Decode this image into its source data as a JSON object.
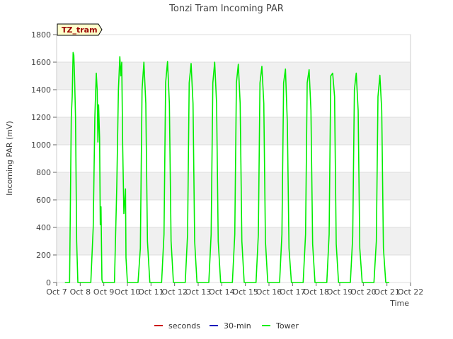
{
  "chart_data": {
    "type": "line",
    "title": "Tonzi Tram Incoming PAR",
    "xlabel": "Time",
    "ylabel": "Incoming PAR (mV)",
    "ylim": [
      0,
      1800
    ],
    "yticks": [
      0,
      200,
      400,
      600,
      800,
      1000,
      1200,
      1400,
      1600,
      1800
    ],
    "xlim": [
      7,
      22
    ],
    "xticks": [
      7,
      8,
      9,
      10,
      11,
      12,
      13,
      14,
      15,
      16,
      17,
      18,
      19,
      20,
      21,
      22
    ],
    "xtick_labels": [
      "Oct 7",
      "Oct 8",
      "Oct 9",
      "Oct 10",
      "Oct 11",
      "Oct 12",
      "Oct 13",
      "Oct 14",
      "Oct 15",
      "Oct 16",
      "Oct 17",
      "Oct 18",
      "Oct 19",
      "Oct 20",
      "Oct 21",
      "Oct 22"
    ],
    "grid": true,
    "legend_position": "bottom-center",
    "annotation": "TZ_tram",
    "series": [
      {
        "name": "seconds",
        "color": "#cc0000",
        "values": []
      },
      {
        "name": "30-min",
        "color": "#0000bb",
        "values": []
      },
      {
        "name": "Tower",
        "color": "#00ee00",
        "x": [
          7.35,
          7.55,
          7.62,
          7.66,
          7.7,
          7.73,
          7.76,
          7.8,
          7.85,
          7.9,
          8.0,
          8.45,
          8.55,
          8.62,
          8.68,
          8.72,
          8.75,
          8.78,
          8.82,
          8.85,
          8.88,
          8.92,
          8.95,
          9.0,
          9.1,
          9.45,
          9.55,
          9.62,
          9.68,
          9.72,
          9.76,
          9.8,
          9.85,
          9.92,
          9.94,
          10.0,
          10.1,
          10.45,
          10.55,
          10.62,
          10.7,
          10.78,
          10.85,
          10.95,
          11.45,
          11.55,
          11.62,
          11.7,
          11.78,
          11.85,
          11.95,
          12.45,
          12.55,
          12.62,
          12.7,
          12.78,
          12.85,
          12.95,
          13.45,
          13.55,
          13.62,
          13.7,
          13.78,
          13.85,
          13.95,
          14.45,
          14.55,
          14.62,
          14.7,
          14.78,
          14.85,
          14.95,
          15.45,
          15.55,
          15.62,
          15.7,
          15.78,
          15.85,
          15.95,
          16.45,
          16.55,
          16.62,
          16.7,
          16.78,
          16.85,
          16.95,
          17.45,
          17.55,
          17.62,
          17.7,
          17.78,
          17.85,
          17.95,
          18.45,
          18.55,
          18.62,
          18.7,
          18.78,
          18.85,
          18.95,
          19.45,
          19.55,
          19.62,
          19.7,
          19.78,
          19.85,
          19.95,
          20.45,
          20.55,
          20.62,
          20.7,
          20.78,
          20.85,
          20.95,
          21.1
        ],
        "values": [
          0,
          0,
          1200,
          1350,
          1670,
          1650,
          1500,
          1200,
          300,
          0,
          0,
          0,
          400,
          1200,
          1520,
          1400,
          1020,
          1290,
          1050,
          420,
          550,
          20,
          0,
          0,
          0,
          0,
          700,
          1400,
          1640,
          1500,
          1600,
          1000,
          500,
          680,
          180,
          0,
          0,
          0,
          250,
          1400,
          1600,
          1300,
          300,
          0,
          0,
          350,
          1450,
          1605,
          1300,
          300,
          0,
          0,
          350,
          1450,
          1590,
          1300,
          300,
          0,
          0,
          350,
          1450,
          1600,
          1300,
          300,
          0,
          0,
          350,
          1450,
          1585,
          1300,
          300,
          0,
          0,
          350,
          1450,
          1570,
          1300,
          300,
          0,
          0,
          350,
          1450,
          1550,
          1150,
          250,
          0,
          0,
          350,
          1450,
          1545,
          1250,
          280,
          0,
          0,
          350,
          1500,
          1520,
          1350,
          280,
          0,
          0,
          330,
          1400,
          1520,
          1250,
          250,
          0,
          0,
          300,
          1350,
          1505,
          1250,
          250,
          0,
          0
        ]
      }
    ]
  }
}
